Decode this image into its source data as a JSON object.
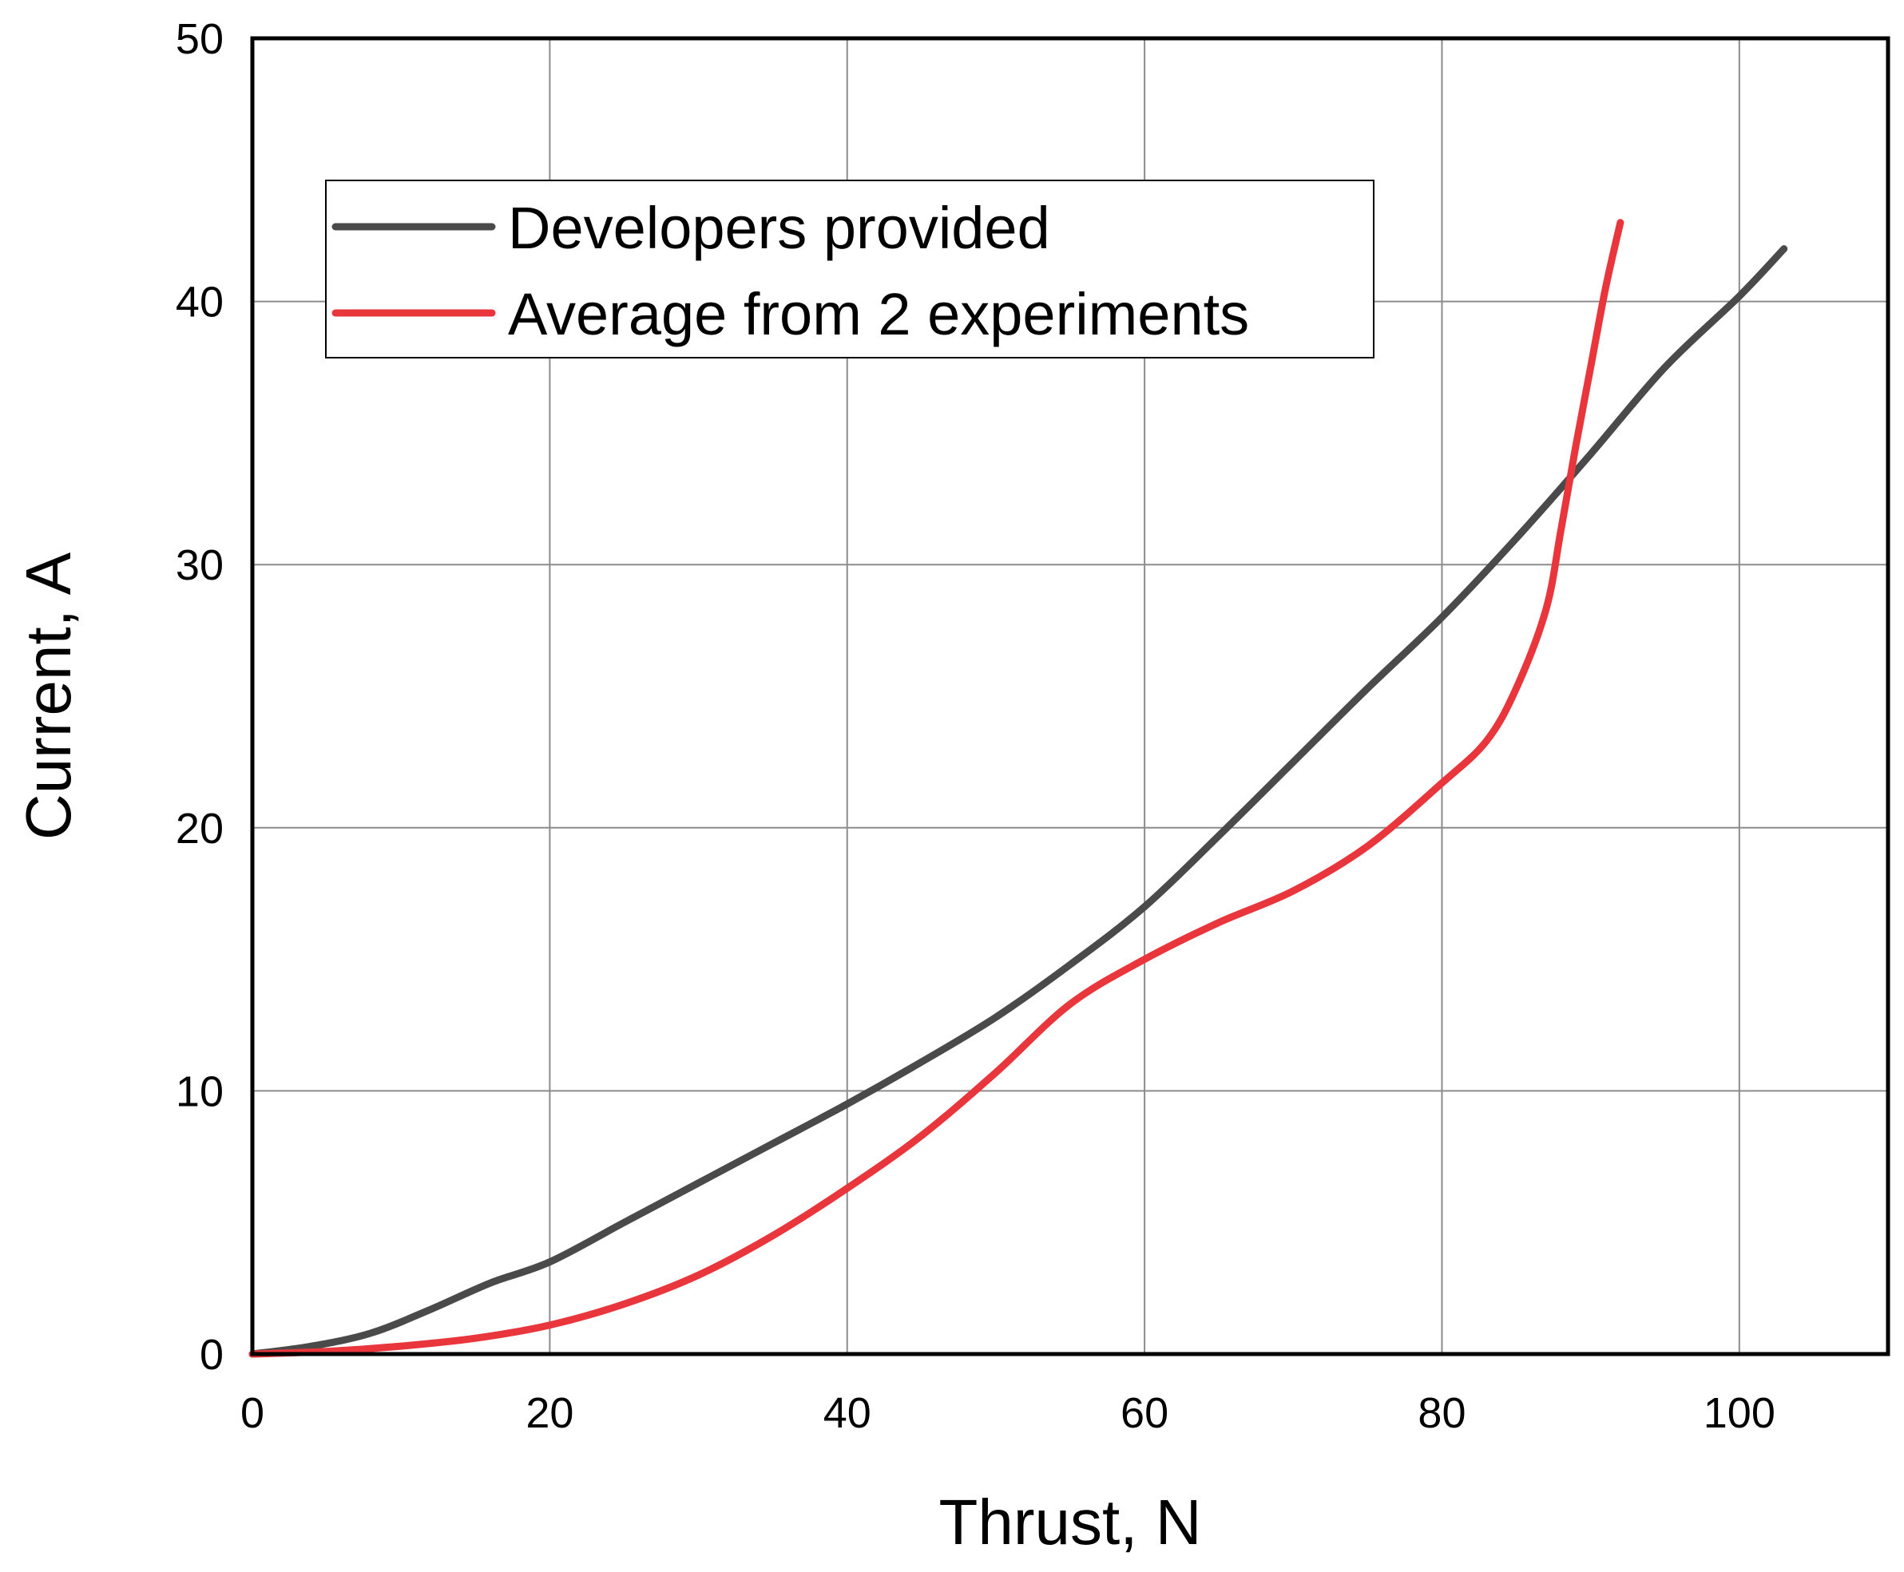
{
  "chart_data": {
    "type": "line",
    "title": "",
    "xlabel": "Thrust, N",
    "ylabel": "Current, A",
    "xlim": [
      0,
      110
    ],
    "ylim": [
      0,
      50
    ],
    "xticks": [
      0,
      20,
      40,
      60,
      80,
      100
    ],
    "yticks": [
      0,
      10,
      20,
      30,
      40,
      50
    ],
    "grid": true,
    "legend_position": "top-left",
    "series": [
      {
        "name": "Developers provided",
        "color": "#4a4a4a",
        "x": [
          0,
          4,
          8,
          12,
          16,
          20,
          25,
          30,
          35,
          40,
          45,
          50,
          55,
          60,
          65,
          70,
          75,
          80,
          85,
          90,
          95,
          100,
          103
        ],
        "y": [
          0,
          0.3,
          0.8,
          1.7,
          2.7,
          3.5,
          5.0,
          6.5,
          8.0,
          9.5,
          11.1,
          12.8,
          14.8,
          17.0,
          19.7,
          22.5,
          25.3,
          28.0,
          31.0,
          34.2,
          37.5,
          40.2,
          42.0
        ]
      },
      {
        "name": "Average from 2 experiments",
        "color": "#e8363c",
        "x": [
          0,
          5,
          10,
          15,
          20,
          25,
          30,
          35,
          40,
          45,
          50,
          55,
          60,
          65,
          70,
          75,
          80,
          83,
          85,
          87,
          88,
          89,
          90,
          91,
          92
        ],
        "y": [
          0,
          0.1,
          0.3,
          0.6,
          1.1,
          1.9,
          3.0,
          4.5,
          6.3,
          8.3,
          10.7,
          13.3,
          15.0,
          16.4,
          17.6,
          19.3,
          21.7,
          23.3,
          25.3,
          28.3,
          31.3,
          34.5,
          37.5,
          40.5,
          43.0
        ]
      }
    ]
  }
}
